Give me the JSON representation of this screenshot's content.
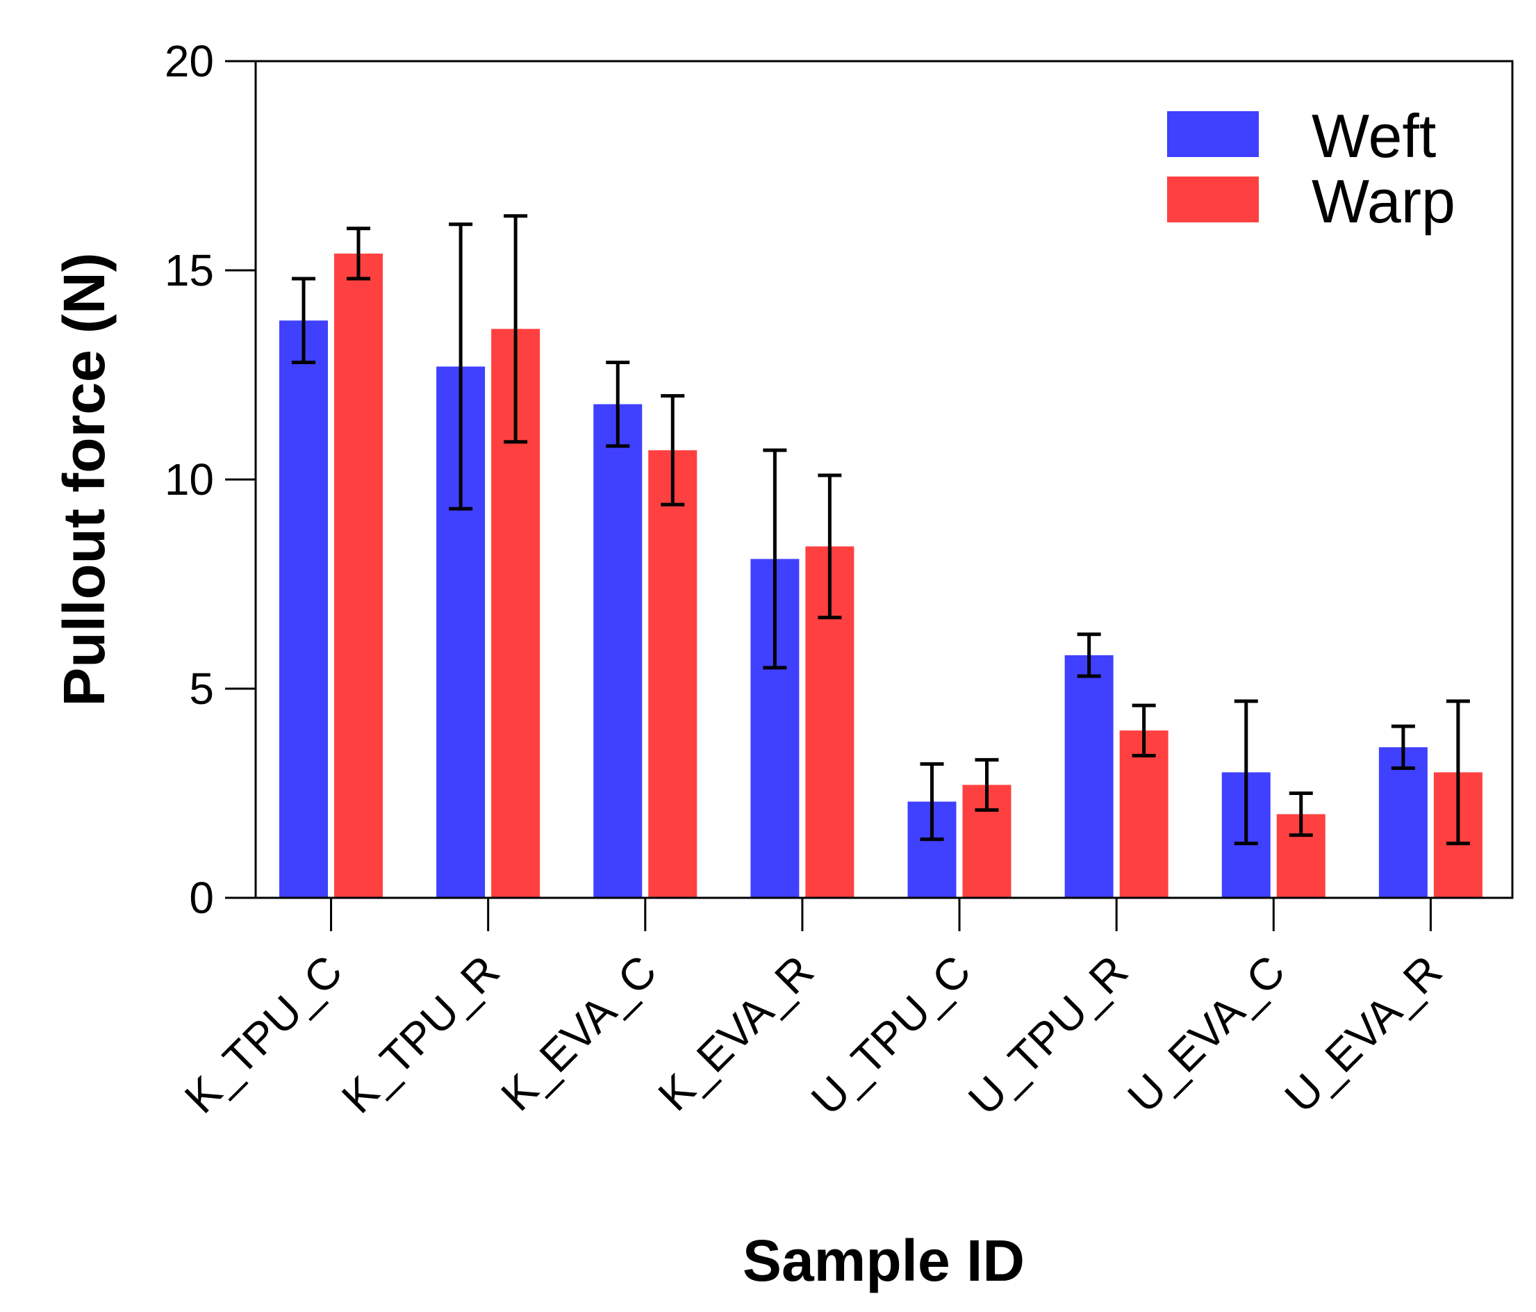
{
  "chart_data": {
    "type": "bar",
    "title": "",
    "xlabel": "Sample ID",
    "ylabel": "Pullout force (N)",
    "ylim": [
      0,
      20
    ],
    "yticks": [
      0,
      5,
      10,
      15,
      20
    ],
    "grid": false,
    "legend_position": "top-right",
    "categories": [
      "K_TPU_C",
      "K_TPU_R",
      "K_EVA_C",
      "K_EVA_R",
      "U_TPU_C",
      "U_TPU_R",
      "U_EVA_C",
      "U_EVA_R"
    ],
    "series": [
      {
        "name": "Weft",
        "color": "#4040ff",
        "values": [
          13.8,
          12.7,
          11.8,
          8.1,
          2.3,
          5.8,
          3.0,
          3.6
        ],
        "errors": [
          1.0,
          3.4,
          1.0,
          2.6,
          0.9,
          0.5,
          1.7,
          0.5
        ]
      },
      {
        "name": "Warp",
        "color": "#ff4040",
        "values": [
          15.4,
          13.6,
          10.7,
          8.4,
          2.7,
          4.0,
          2.0,
          3.0
        ],
        "errors": [
          0.6,
          2.7,
          1.3,
          1.7,
          0.6,
          0.6,
          0.5,
          1.7
        ]
      }
    ]
  }
}
